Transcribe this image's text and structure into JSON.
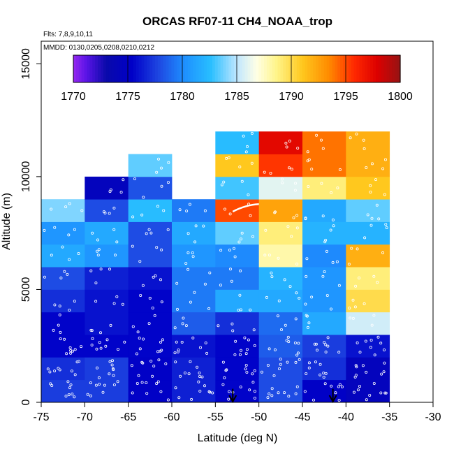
{
  "chart_data": {
    "type": "heatmap",
    "title": "ORCAS RF07-11 CH4_NOAA_trop",
    "notes": [
      "Flts: 7,8,9,10,11",
      "MMDD: 0130,0205,0208,0210,0212"
    ],
    "xlabel": "Latitude (deg N)",
    "ylabel": "Altitude (m)",
    "xlim": [
      -75,
      -30
    ],
    "ylim": [
      0,
      16000
    ],
    "x_ticks": [
      "-75",
      "-70",
      "-65",
      "-60",
      "-55",
      "-50",
      "-45",
      "-40",
      "-35",
      "-30"
    ],
    "x_tick_values": [
      -75,
      -70,
      -65,
      -60,
      -55,
      -50,
      -45,
      -40,
      -35,
      -30
    ],
    "y_ticks": [
      "0",
      "5000",
      "10000",
      "15000"
    ],
    "y_tick_values": [
      0,
      5000,
      10000,
      15000
    ],
    "colorbar": {
      "range": [
        1770,
        1800
      ],
      "ticks": [
        "1770",
        "1775",
        "1780",
        "1785",
        "1790",
        "1795",
        "1800"
      ],
      "tick_values": [
        1770,
        1775,
        1780,
        1785,
        1790,
        1795,
        1800
      ]
    },
    "bin_width_deg": 5,
    "bin_height_m": 1000,
    "cells": [
      [
        -75,
        0,
        1777.5
      ],
      [
        -75,
        1000,
        1777
      ],
      [
        -75,
        2000,
        1775.5
      ],
      [
        -75,
        3000,
        1775.5
      ],
      [
        -75,
        4000,
        1777
      ],
      [
        -75,
        5000,
        1778
      ],
      [
        -75,
        6000,
        1781.5
      ],
      [
        -75,
        7000,
        1780.5
      ],
      [
        -75,
        8000,
        1784
      ],
      [
        -70,
        0,
        1777.5
      ],
      [
        -70,
        1000,
        1777.5
      ],
      [
        -70,
        2000,
        1775.5
      ],
      [
        -70,
        3000,
        1776
      ],
      [
        -70,
        4000,
        1776
      ],
      [
        -70,
        5000,
        1776.5
      ],
      [
        -70,
        6000,
        1780.5
      ],
      [
        -70,
        7000,
        1781.5
      ],
      [
        -70,
        8000,
        1778
      ],
      [
        -70,
        9000,
        1774.5
      ],
      [
        -65,
        0,
        1775.2
      ],
      [
        -65,
        1000,
        1775.2
      ],
      [
        -65,
        2000,
        1775.5
      ],
      [
        -65,
        3000,
        1775.5
      ],
      [
        -65,
        4000,
        1775.5
      ],
      [
        -65,
        5000,
        1776
      ],
      [
        -65,
        6000,
        1778
      ],
      [
        -65,
        7000,
        1778
      ],
      [
        -65,
        8000,
        1782.5
      ],
      [
        -65,
        9000,
        1778.2
      ],
      [
        -65,
        10000,
        1783.5
      ],
      [
        -60,
        0,
        1776.5
      ],
      [
        -60,
        1000,
        1776.5
      ],
      [
        -60,
        2000,
        1776
      ],
      [
        -60,
        3000,
        1778.5
      ],
      [
        -60,
        4000,
        1779.5
      ],
      [
        -60,
        5000,
        1779.5
      ],
      [
        -60,
        6000,
        1780.5
      ],
      [
        -60,
        7000,
        1781.5
      ],
      [
        -60,
        8000,
        1779.5
      ],
      [
        -55,
        0,
        1775.5
      ],
      [
        -55,
        1000,
        1775.5
      ],
      [
        -55,
        2000,
        1775.5
      ],
      [
        -55,
        3000,
        1777
      ],
      [
        -55,
        4000,
        1781.5
      ],
      [
        -55,
        5000,
        1779.5
      ],
      [
        -55,
        6000,
        1780
      ],
      [
        -55,
        7000,
        1783.5
      ],
      [
        -55,
        8000,
        1795
      ],
      [
        -55,
        9000,
        1783
      ],
      [
        -55,
        10000,
        1791
      ],
      [
        -55,
        11000,
        1782.5
      ],
      [
        -50,
        0,
        1778
      ],
      [
        -50,
        1000,
        1778
      ],
      [
        -50,
        2000,
        1778.5
      ],
      [
        -50,
        3000,
        1779
      ],
      [
        -50,
        4000,
        1781.5
      ],
      [
        -50,
        5000,
        1782
      ],
      [
        -50,
        6000,
        1788
      ],
      [
        -50,
        7000,
        1789
      ],
      [
        -50,
        8000,
        1792.5
      ],
      [
        -50,
        9000,
        1786
      ],
      [
        -50,
        10000,
        1795.5
      ],
      [
        -50,
        11000,
        1797.5
      ],
      [
        -45,
        0,
        1775.2
      ],
      [
        -45,
        1000,
        1777
      ],
      [
        -45,
        2000,
        1777.5
      ],
      [
        -45,
        3000,
        1781.5
      ],
      [
        -45,
        4000,
        1780.5
      ],
      [
        -45,
        5000,
        1780.5
      ],
      [
        -45,
        6000,
        1780
      ],
      [
        -45,
        7000,
        1782
      ],
      [
        -45,
        8000,
        1781.5
      ],
      [
        -45,
        9000,
        1789
      ],
      [
        -45,
        10000,
        1794
      ],
      [
        -45,
        11000,
        1794
      ],
      [
        -40,
        0,
        1774.5
      ],
      [
        -40,
        1000,
        1774.5
      ],
      [
        -40,
        2000,
        1776
      ],
      [
        -40,
        3000,
        1785.5
      ],
      [
        -40,
        4000,
        1790
      ],
      [
        -40,
        5000,
        1789
      ],
      [
        -40,
        6000,
        1792
      ],
      [
        -40,
        7000,
        1782
      ],
      [
        -40,
        8000,
        1783.5
      ],
      [
        -40,
        9000,
        1791
      ],
      [
        -40,
        10000,
        1792
      ],
      [
        -40,
        11000,
        1792
      ]
    ],
    "markers": [
      {
        "x": -53,
        "y": 600
      },
      {
        "x": -41.5,
        "y": 600
      }
    ]
  }
}
